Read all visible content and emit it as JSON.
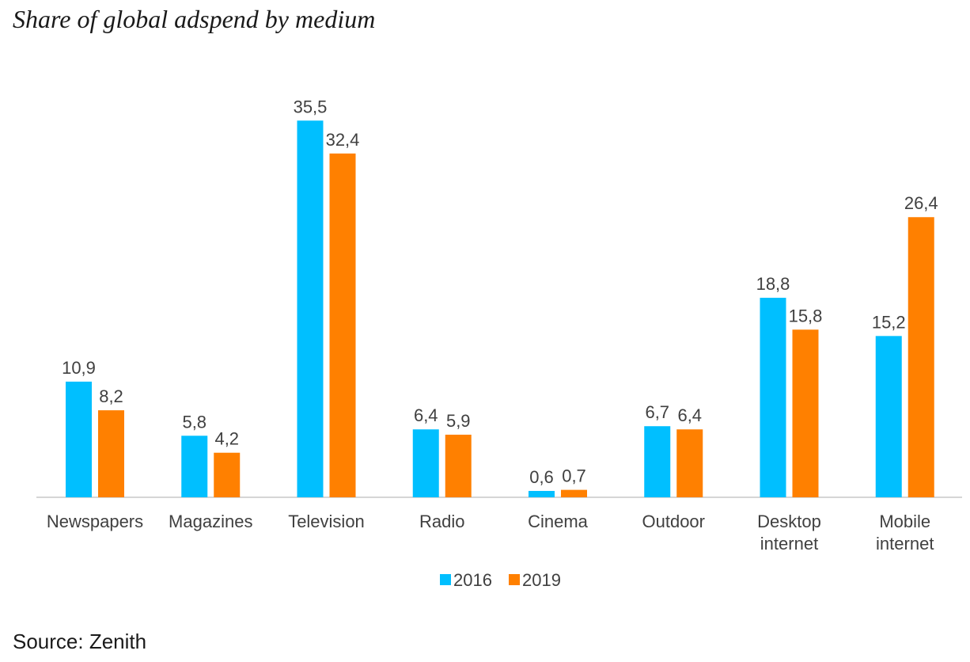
{
  "title": "Share of global adspend by medium",
  "source": "Source: Zenith",
  "colors": {
    "series_2016": "#00BFFF",
    "series_2019": "#FF8000",
    "axis": "#c8c8c8",
    "text": "#404040"
  },
  "chart_data": {
    "type": "bar",
    "categories": [
      [
        "Newspapers"
      ],
      [
        "Magazines"
      ],
      [
        "Television"
      ],
      [
        "Radio"
      ],
      [
        "Cinema"
      ],
      [
        "Outdoor"
      ],
      [
        "Desktop",
        "internet"
      ],
      [
        "Mobile",
        "internet"
      ]
    ],
    "series": [
      {
        "name": "2016",
        "values": [
          10.9,
          5.8,
          35.5,
          6.4,
          0.6,
          6.7,
          18.8,
          15.2
        ],
        "labels": [
          "10,9",
          "5,8",
          "35,5",
          "6,4",
          "0,6",
          "6,7",
          "18,8",
          "15,2"
        ]
      },
      {
        "name": "2019",
        "values": [
          8.2,
          4.2,
          32.4,
          5.9,
          0.7,
          6.4,
          15.8,
          26.4
        ],
        "labels": [
          "8,2",
          "4,2",
          "32,4",
          "5,9",
          "0,7",
          "6,4",
          "15,8",
          "26,4"
        ]
      }
    ],
    "ylim": [
      0,
      40
    ],
    "xlabel": "",
    "ylabel": "",
    "legend": "bottom-center",
    "grid": false
  }
}
